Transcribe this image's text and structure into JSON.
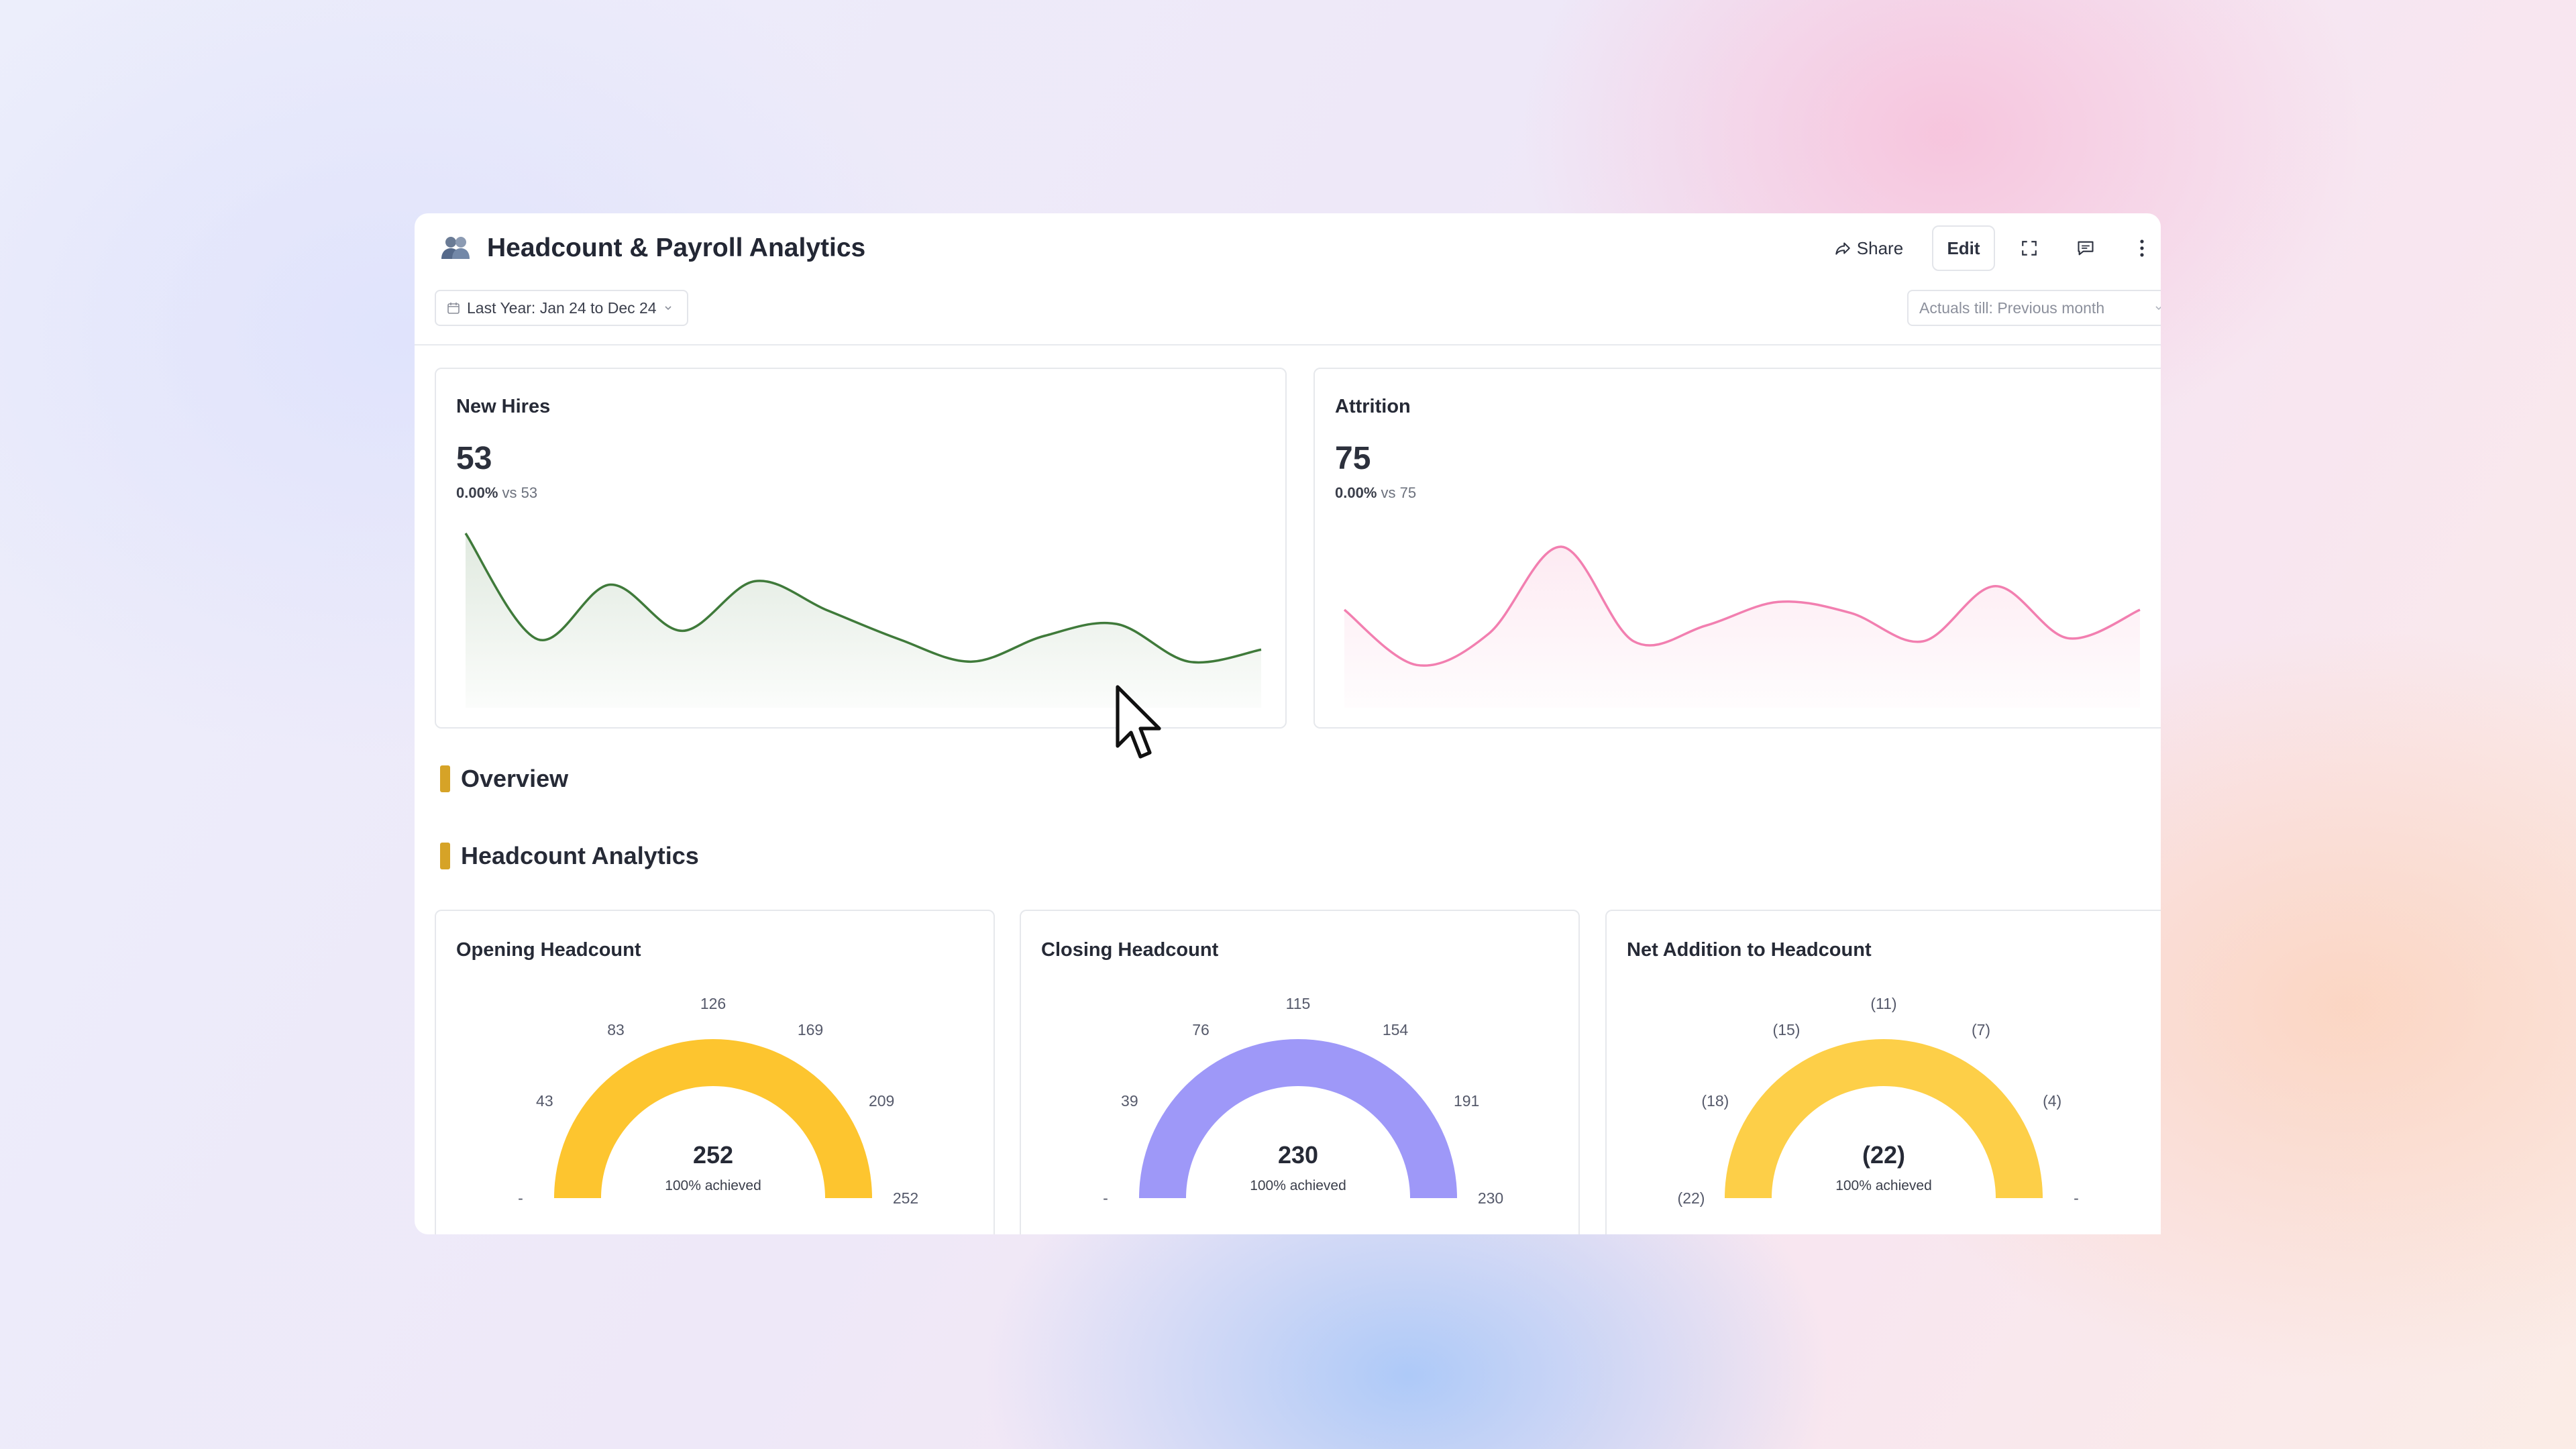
{
  "header": {
    "title": "Headcount & Payroll Analytics",
    "title_icon": "people-icon",
    "share_label": "Share",
    "edit_label": "Edit"
  },
  "filters": {
    "date_range": "Last Year: Jan 24 to Dec 24",
    "actuals": "Actuals till: Previous month"
  },
  "kpis": [
    {
      "title": "New Hires",
      "value": "53",
      "change_pct": "0.00%",
      "change_ref": "vs 53",
      "color": "#3f7a3a"
    },
    {
      "title": "Attrition",
      "value": "75",
      "change_pct": "0.00%",
      "change_ref": "vs 75",
      "color": "#f27fb0"
    }
  ],
  "sections": {
    "overview": "Overview",
    "headcount": "Headcount Analytics"
  },
  "gauges": [
    {
      "title": "Opening Headcount",
      "value": "252",
      "achieved": "100% achieved",
      "color": "#fdc52f",
      "ticks": [
        "-",
        "43",
        "83",
        "126",
        "169",
        "209",
        "252"
      ]
    },
    {
      "title": "Closing Headcount",
      "value": "230",
      "achieved": "100% achieved",
      "color": "#9e98f8",
      "ticks": [
        "-",
        "39",
        "76",
        "115",
        "154",
        "191",
        "230"
      ]
    },
    {
      "title": "Net Addition to Headcount",
      "value": "(22)",
      "achieved": "100% achieved",
      "color": "#fdcf48",
      "ticks": [
        "(22)",
        "(18)",
        "(15)",
        "(11)",
        "(7)",
        "(4)",
        "-"
      ]
    }
  ],
  "chart_data": [
    {
      "type": "area",
      "title": "New Hires",
      "x": [
        0,
        1,
        2,
        3,
        4,
        5,
        6,
        7,
        8,
        9,
        10,
        11
      ],
      "values": [
        100,
        38,
        70,
        43,
        72,
        55,
        38,
        25,
        40,
        47,
        25,
        32
      ]
    },
    {
      "type": "area",
      "title": "Attrition",
      "x": [
        0,
        1,
        2,
        3,
        4,
        5,
        6,
        7,
        8,
        9,
        10,
        11
      ],
      "values": [
        60,
        25,
        45,
        100,
        40,
        50,
        65,
        58,
        40,
        75,
        42,
        60
      ]
    }
  ]
}
